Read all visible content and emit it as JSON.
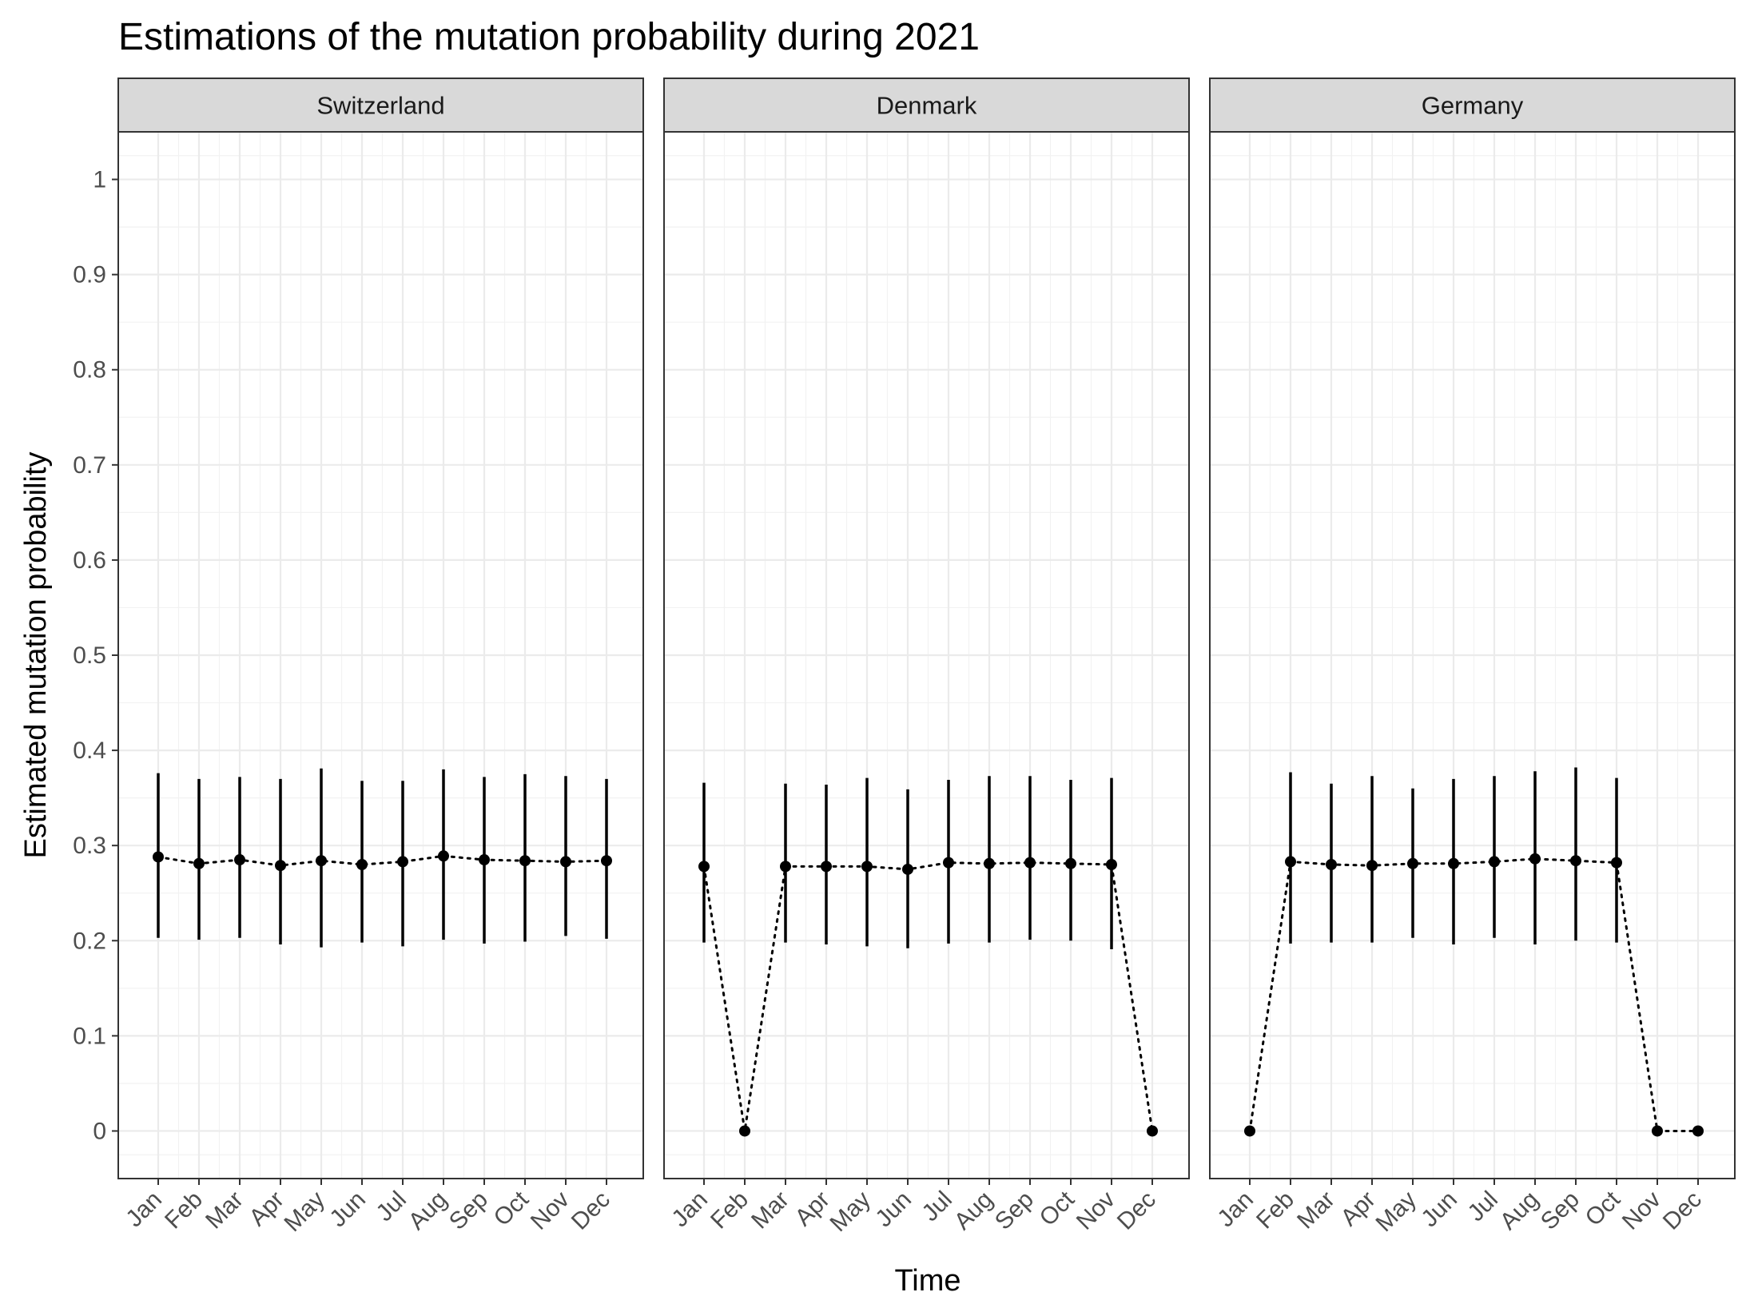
{
  "chart_data": {
    "type": "scatter",
    "title": "Estimations of the mutation probability during 2021",
    "xlabel": "Time",
    "ylabel": "Estimated mutation probability",
    "categories": [
      "Jan",
      "Feb",
      "Mar",
      "Apr",
      "May",
      "Jun",
      "Jul",
      "Aug",
      "Sep",
      "Oct",
      "Nov",
      "Dec"
    ],
    "ylim": [
      -0.05,
      1.05
    ],
    "yticks": [
      0,
      0.1,
      0.2,
      0.3,
      0.4,
      0.5,
      0.6,
      0.7,
      0.8,
      0.9,
      1
    ],
    "ytick_labels": [
      "0",
      "0.1",
      "0.2",
      "0.3",
      "0.4",
      "0.5",
      "0.6",
      "0.7",
      "0.8",
      "0.9",
      "1"
    ],
    "grid": true,
    "connector": "dotted",
    "panels": [
      {
        "name": "Switzerland",
        "values": [
          0.288,
          0.281,
          0.285,
          0.279,
          0.284,
          0.28,
          0.283,
          0.289,
          0.285,
          0.284,
          0.283,
          0.284
        ],
        "lower": [
          0.203,
          0.201,
          0.203,
          0.196,
          0.193,
          0.198,
          0.194,
          0.201,
          0.197,
          0.199,
          0.205,
          0.202
        ],
        "upper": [
          0.376,
          0.37,
          0.372,
          0.37,
          0.381,
          0.368,
          0.368,
          0.38,
          0.372,
          0.375,
          0.373,
          0.37
        ]
      },
      {
        "name": "Denmark",
        "values": [
          0.278,
          0.0,
          0.278,
          0.278,
          0.278,
          0.275,
          0.282,
          0.281,
          0.282,
          0.281,
          0.28,
          0.0
        ],
        "lower": [
          0.198,
          null,
          0.198,
          0.196,
          0.194,
          0.192,
          0.197,
          0.198,
          0.201,
          0.2,
          0.191,
          null
        ],
        "upper": [
          0.366,
          null,
          0.365,
          0.364,
          0.371,
          0.359,
          0.369,
          0.373,
          0.373,
          0.369,
          0.371,
          null
        ]
      },
      {
        "name": "Germany",
        "values": [
          0.0,
          0.283,
          0.28,
          0.279,
          0.281,
          0.281,
          0.283,
          0.286,
          0.284,
          0.282,
          0.0,
          0.0
        ],
        "lower": [
          null,
          0.197,
          0.198,
          0.198,
          0.203,
          0.196,
          0.203,
          0.196,
          0.2,
          0.198,
          null,
          null
        ],
        "upper": [
          null,
          0.377,
          0.365,
          0.373,
          0.36,
          0.37,
          0.373,
          0.378,
          0.382,
          0.371,
          null,
          null
        ]
      }
    ]
  }
}
